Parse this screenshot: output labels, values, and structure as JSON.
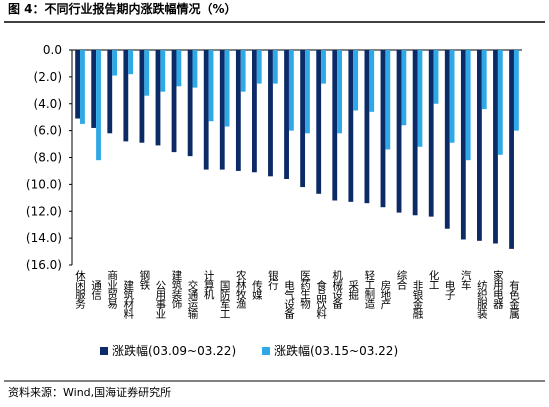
{
  "chart_data": {
    "type": "bar",
    "title": "图 4：不同行业报告期内涨跌幅情况（%）",
    "source": "资料来源：Wind,国海证券研究所",
    "categories": [
      "休闲服务",
      "通信",
      "商业贸易",
      "建筑材料",
      "钢铁",
      "公用事业",
      "建筑装饰",
      "交通运输",
      "计算机",
      "国防军工",
      "农林牧渔",
      "传媒",
      "银行",
      "电气设备",
      "医药生物",
      "食品饮料",
      "机械设备",
      "采掘",
      "轻工制造",
      "房地产",
      "综合",
      "非银金融",
      "化工",
      "电子",
      "汽车",
      "纺织服装",
      "家用电器",
      "有色金属"
    ],
    "series": [
      {
        "name": "涨跌幅(03.09~03.22)",
        "color": "#0b2a66",
        "values": [
          -5.1,
          -5.8,
          -6.2,
          -6.8,
          -6.9,
          -7.1,
          -7.6,
          -7.9,
          -8.9,
          -8.9,
          -9.0,
          -9.1,
          -9.4,
          -9.6,
          -10.2,
          -10.7,
          -11.2,
          -11.3,
          -11.4,
          -11.7,
          -12.1,
          -12.3,
          -12.4,
          -13.3,
          -14.1,
          -14.2,
          -14.4,
          -14.8
        ]
      },
      {
        "name": "涨跌幅(03.15~03.22)",
        "color": "#2ea8e6",
        "values": [
          -5.5,
          -8.2,
          -1.9,
          -1.8,
          -3.4,
          -3.1,
          -2.7,
          -2.8,
          -5.3,
          -5.7,
          -3.1,
          -2.5,
          -2.5,
          -6.0,
          -6.2,
          -2.5,
          -6.2,
          -4.5,
          -4.6,
          -7.4,
          -5.6,
          -7.2,
          -4.0,
          -6.9,
          -8.2,
          -4.4,
          -7.8,
          -6.0
        ]
      }
    ],
    "ylim": [
      -16,
      0
    ],
    "yticks": [
      {
        "value": 0,
        "label": "0.0"
      },
      {
        "value": -2,
        "label": "(2.0)"
      },
      {
        "value": -4,
        "label": "(4.0)"
      },
      {
        "value": -6,
        "label": "(6.0)"
      },
      {
        "value": -8,
        "label": "(8.0)"
      },
      {
        "value": -10,
        "label": "(10.0)"
      },
      {
        "value": -12,
        "label": "(12.0)"
      },
      {
        "value": -14,
        "label": "(14.0)"
      },
      {
        "value": -16,
        "label": "(16.0)"
      }
    ]
  }
}
